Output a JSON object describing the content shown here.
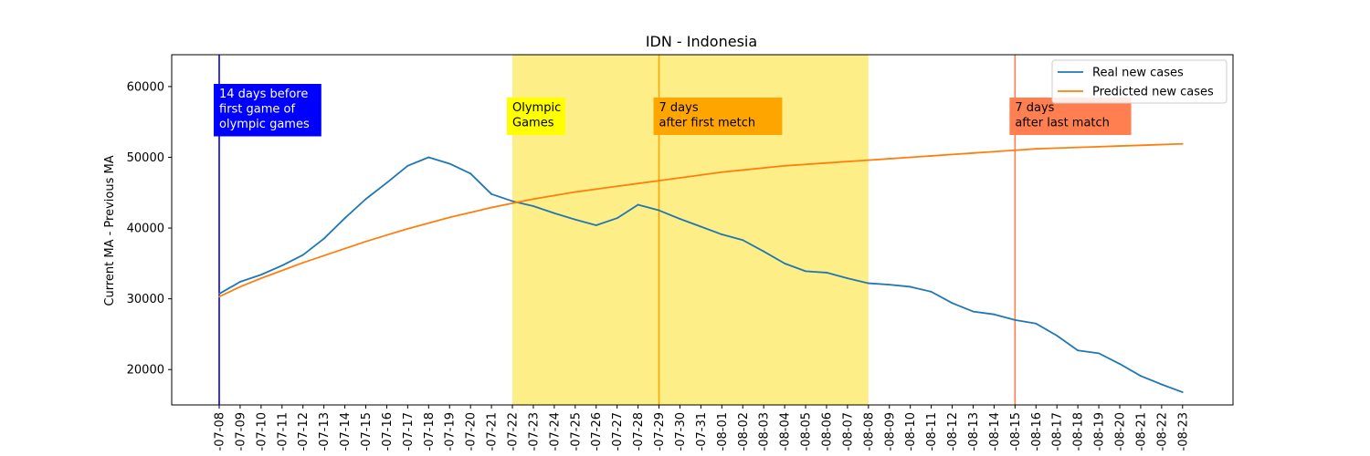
{
  "chart_data": {
    "type": "line",
    "title": "IDN - Indonesia",
    "xlabel": "",
    "ylabel": "Current MA - Previous MA",
    "ylim": [
      15000,
      64500
    ],
    "yticks": [
      20000,
      30000,
      40000,
      50000,
      60000
    ],
    "x": [
      "-07-08",
      "-07-09",
      "-07-10",
      "-07-11",
      "-07-12",
      "-07-13",
      "-07-14",
      "-07-15",
      "-07-16",
      "-07-17",
      "-07-18",
      "-07-19",
      "-07-20",
      "-07-21",
      "-07-22",
      "-07-23",
      "-07-24",
      "-07-25",
      "-07-26",
      "-07-27",
      "-07-28",
      "-07-29",
      "-07-30",
      "-07-31",
      "-08-01",
      "-08-02",
      "-08-03",
      "-08-04",
      "-08-05",
      "-08-06",
      "-08-07",
      "-08-08",
      "-08-09",
      "-08-10",
      "-08-11",
      "-08-12",
      "-08-13",
      "-08-14",
      "-08-15",
      "-08-16",
      "-08-17",
      "-08-18",
      "-08-19",
      "-08-20",
      "-08-21",
      "-08-22",
      "-08-23"
    ],
    "series": [
      {
        "name": "Real new cases",
        "color": "#1f77b4",
        "values": [
          30700,
          32400,
          33400,
          34700,
          36200,
          38500,
          41400,
          44100,
          46400,
          48800,
          50000,
          49100,
          47700,
          44800,
          43800,
          43100,
          42100,
          41200,
          40400,
          41400,
          43300,
          42500,
          41300,
          40200,
          39100,
          38300,
          36700,
          35000,
          33900,
          33700,
          32900,
          32200,
          32000,
          31700,
          31000,
          29400,
          28200,
          27800,
          27000,
          26500,
          24800,
          22700,
          22300,
          20800,
          19100,
          17900,
          16800
        ]
      },
      {
        "name": "Predicted new cases",
        "color": "#ff7f0e",
        "values": [
          30300,
          31700,
          32900,
          34000,
          35100,
          36100,
          37100,
          38100,
          39000,
          39900,
          40700,
          41500,
          42200,
          42900,
          43500,
          44100,
          44600,
          45100,
          45500,
          45900,
          46300,
          46700,
          47100,
          47500,
          47900,
          48200,
          48500,
          48800,
          49000,
          49200,
          49400,
          49600,
          49800,
          50000,
          50200,
          50400,
          50600,
          50800,
          51000,
          51200,
          51300,
          51400,
          51500,
          51600,
          51700,
          51800,
          51900
        ]
      }
    ],
    "shaded_region": {
      "from": "-07-22",
      "to": "-08-08",
      "color": "#fdee87"
    },
    "annotations": [
      {
        "at": "-07-08",
        "line_color": "#0000ff",
        "box_color": "#0000ff",
        "text_color": "#ffffff",
        "lines": [
          "14 days before",
          "first game of",
          "olympic games"
        ]
      },
      {
        "at": "-07-22",
        "line_color": "",
        "box_color": "#ffff00",
        "text_color": "#000000",
        "lines": [
          "Olympic",
          "Games"
        ]
      },
      {
        "at": "-07-29",
        "line_color": "#ffa500",
        "box_color": "#ffa500",
        "text_color": "#000000",
        "lines": [
          "7 days",
          "after first metch"
        ]
      },
      {
        "at": "-08-15",
        "line_color": "#ff7f50",
        "box_color": "#ff7f50",
        "text_color": "#000000",
        "lines": [
          "7 days",
          "after last match"
        ]
      }
    ],
    "legend": "top-right",
    "grid": false
  }
}
